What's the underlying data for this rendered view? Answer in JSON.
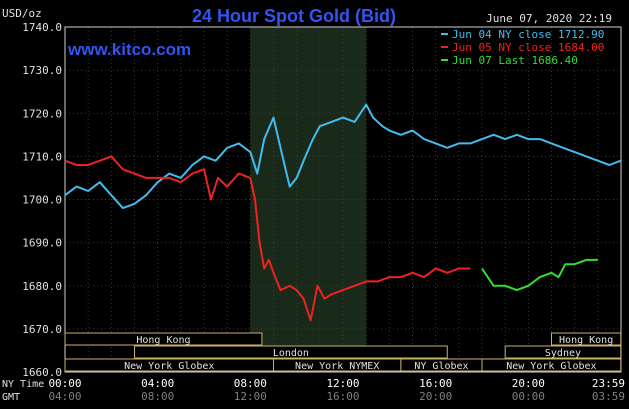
{
  "header": {
    "title": "24 Hour Spot Gold (Bid)",
    "site": "www.kitco.com",
    "date_time": "June 07, 2020 22:19",
    "unit": "USD/oz"
  },
  "legend": [
    {
      "text": "Jun 04 NY close 1712.90",
      "color": "#44bbee"
    },
    {
      "text": "Jun 05 NY close 1684.00",
      "color": "#ee2222"
    },
    {
      "text": "Jun 07 Last 1686.40",
      "color": "#33dd33"
    }
  ],
  "time_labels": {
    "ny_label": "NY Time",
    "gmt_label": "GMT",
    "ny": [
      "00:00",
      "04:00",
      "08:00",
      "12:00",
      "16:00",
      "20:00",
      "23:59"
    ],
    "gmt": [
      "04:00",
      "08:00",
      "12:00",
      "16:00",
      "20:00",
      "00:00",
      "03:59"
    ]
  },
  "sessions": [
    {
      "name": "Hong Kong",
      "row": 0,
      "start": 0.0,
      "end": 8.5
    },
    {
      "name": "London",
      "row": 1,
      "start": 3.0,
      "end": 16.5
    },
    {
      "name": "New York Globex",
      "row": 2,
      "start": 0.0,
      "end": 9.0
    },
    {
      "name": "New York NYMEX",
      "row": 2,
      "start": 9.0,
      "end": 14.5
    },
    {
      "name": "NY Globex",
      "row": 2,
      "start": 14.5,
      "end": 18.0
    },
    {
      "name": "Hong Kong",
      "row": 0,
      "start": 21.0,
      "end": 23.99
    },
    {
      "name": "Sydney",
      "row": 1,
      "start": 19.0,
      "end": 23.99
    },
    {
      "name": "New York Globex",
      "row": 2,
      "start": 18.0,
      "end": 23.99
    }
  ],
  "chart_data": {
    "type": "line",
    "ylabel": "USD/oz",
    "ylim": [
      1660,
      1740
    ],
    "yticks": [
      1660,
      1670,
      1680,
      1690,
      1700,
      1710,
      1720,
      1730,
      1740
    ],
    "xlim": [
      0,
      24
    ],
    "x_unit": "NY time hours",
    "shaded_x_range": [
      8.0,
      13.0
    ],
    "grid": true,
    "legend_position": "top-right",
    "series": [
      {
        "name": "Jun 04 NY close 1712.90",
        "color": "#44bbee",
        "x": [
          0,
          0.5,
          1,
          1.5,
          2,
          2.5,
          3,
          3.5,
          4,
          4.5,
          5,
          5.5,
          6,
          6.5,
          7,
          7.5,
          8,
          8.3,
          8.6,
          9,
          9.3,
          9.7,
          10,
          10.3,
          10.7,
          11,
          11.5,
          12,
          12.5,
          13,
          13.3,
          13.7,
          14,
          14.5,
          15,
          15.5,
          16,
          16.5,
          17,
          17.5,
          18,
          18.5,
          19,
          19.5,
          20,
          20.5,
          21,
          21.5,
          22,
          22.5,
          23,
          23.5,
          23.99
        ],
        "y": [
          1701,
          1703,
          1702,
          1704,
          1701,
          1698,
          1699,
          1701,
          1704,
          1706,
          1705,
          1708,
          1710,
          1709,
          1712,
          1713,
          1711,
          1706,
          1714,
          1719,
          1712,
          1703,
          1705,
          1709,
          1714,
          1717,
          1718,
          1719,
          1718,
          1722,
          1719,
          1717,
          1716,
          1715,
          1716,
          1714,
          1713,
          1712,
          1713,
          1713,
          1714,
          1715,
          1714,
          1715,
          1714,
          1714,
          1713,
          1712,
          1711,
          1710,
          1709,
          1708,
          1709
        ]
      },
      {
        "name": "Jun 05 NY close 1684.00",
        "color": "#ee2222",
        "x": [
          0,
          0.5,
          1,
          1.5,
          2,
          2.5,
          3,
          3.5,
          4,
          4.5,
          5,
          5.5,
          6,
          6.3,
          6.6,
          7,
          7.5,
          8,
          8.2,
          8.4,
          8.6,
          8.8,
          9,
          9.3,
          9.7,
          10,
          10.3,
          10.6,
          10.9,
          11.2,
          11.5,
          12,
          12.5,
          13,
          13.5,
          14,
          14.5,
          15,
          15.5,
          16,
          16.5,
          17,
          17.5
        ],
        "y": [
          1709,
          1708,
          1708,
          1709,
          1710,
          1707,
          1706,
          1705,
          1705,
          1705,
          1704,
          1706,
          1707,
          1700,
          1705,
          1703,
          1706,
          1705,
          1700,
          1690,
          1684,
          1686,
          1683,
          1679,
          1680,
          1679,
          1677,
          1672,
          1680,
          1677,
          1678,
          1679,
          1680,
          1681,
          1681,
          1682,
          1682,
          1683,
          1682,
          1684,
          1683,
          1684,
          1684
        ]
      },
      {
        "name": "Jun 07 Last 1686.40",
        "color": "#33dd33",
        "x": [
          18,
          18.5,
          19,
          19.5,
          20,
          20.5,
          21,
          21.3,
          21.6,
          22,
          22.5,
          23
        ],
        "y": [
          1684,
          1680,
          1680,
          1679,
          1680,
          1682,
          1683,
          1682,
          1685,
          1685,
          1686,
          1686
        ]
      }
    ]
  }
}
